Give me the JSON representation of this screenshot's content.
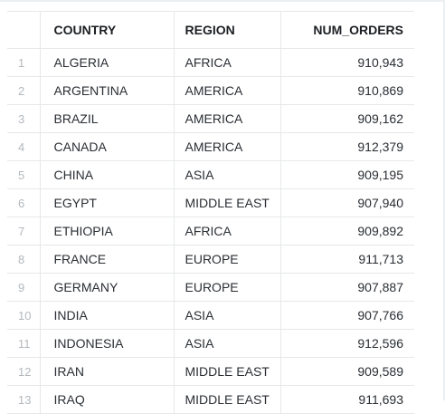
{
  "table": {
    "headers": {
      "index": "",
      "country": "COUNTRY",
      "region": "REGION",
      "num_orders": "NUM_ORDERS"
    },
    "rows": [
      {
        "index": "1",
        "country": "ALGERIA",
        "region": "AFRICA",
        "num_orders": "910,943"
      },
      {
        "index": "2",
        "country": "ARGENTINA",
        "region": "AMERICA",
        "num_orders": "910,869"
      },
      {
        "index": "3",
        "country": "BRAZIL",
        "region": "AMERICA",
        "num_orders": "909,162"
      },
      {
        "index": "4",
        "country": "CANADA",
        "region": "AMERICA",
        "num_orders": "912,379"
      },
      {
        "index": "5",
        "country": "CHINA",
        "region": "ASIA",
        "num_orders": "909,195"
      },
      {
        "index": "6",
        "country": "EGYPT",
        "region": "MIDDLE EAST",
        "num_orders": "907,940"
      },
      {
        "index": "7",
        "country": "ETHIOPIA",
        "region": "AFRICA",
        "num_orders": "909,892"
      },
      {
        "index": "8",
        "country": "FRANCE",
        "region": "EUROPE",
        "num_orders": "911,713"
      },
      {
        "index": "9",
        "country": "GERMANY",
        "region": "EUROPE",
        "num_orders": "907,887"
      },
      {
        "index": "10",
        "country": "INDIA",
        "region": "ASIA",
        "num_orders": "907,766"
      },
      {
        "index": "11",
        "country": "INDONESIA",
        "region": "ASIA",
        "num_orders": "912,596"
      },
      {
        "index": "12",
        "country": "IRAN",
        "region": "MIDDLE EAST",
        "num_orders": "909,589"
      },
      {
        "index": "13",
        "country": "IRAQ",
        "region": "MIDDLE EAST",
        "num_orders": "911,693"
      }
    ]
  }
}
